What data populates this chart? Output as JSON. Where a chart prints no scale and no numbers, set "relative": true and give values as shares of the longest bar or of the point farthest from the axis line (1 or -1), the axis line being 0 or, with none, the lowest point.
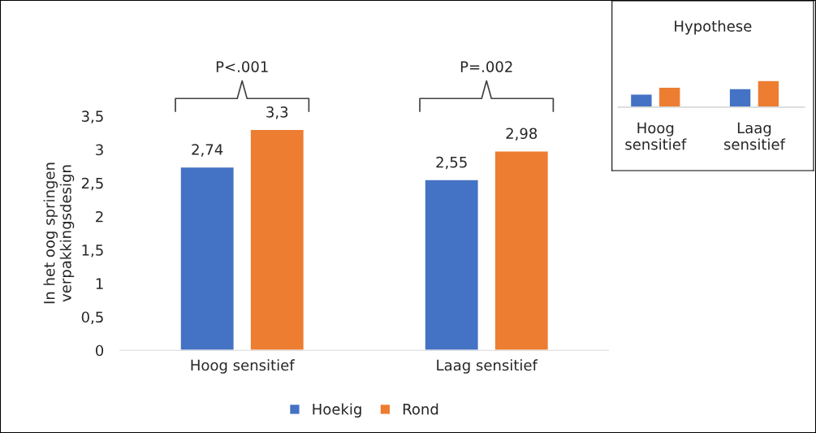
{
  "chart_data": [
    {
      "type": "bar",
      "ylabel": "In het oog springen\nverpakkingsdesign",
      "categories": [
        "Hoog sensitief",
        "Laag sensitief"
      ],
      "series": [
        {
          "name": "Hoekig",
          "color": "#4472c4",
          "values": [
            2.74,
            2.55
          ],
          "value_labels": [
            "2,74",
            "2,55"
          ]
        },
        {
          "name": "Rond",
          "color": "#ed7d31",
          "values": [
            3.3,
            2.98
          ],
          "value_labels": [
            "3,3",
            "2,98"
          ]
        }
      ],
      "ylim": [
        0,
        3.5
      ],
      "yticks": [
        0,
        {
          "value": 0.5,
          "label": "0,5"
        },
        1,
        {
          "value": 1.5,
          "label": "1,5"
        },
        2,
        {
          "value": 2.5,
          "label": "2,5"
        },
        3,
        {
          "value": 3.5,
          "label": "3,5"
        }
      ],
      "grid": false,
      "legend": "bottom",
      "annotations": [
        "P<.001",
        "P=.002"
      ]
    },
    {
      "type": "bar",
      "title": "Hypothese",
      "categories": [
        "Hoog\nsensitief",
        "Laag\nsensitief"
      ],
      "relative": true,
      "series": [
        {
          "color": "#4472c4",
          "values": [
            0.49,
            0.7
          ]
        },
        {
          "color": "#ed7d31",
          "values": [
            0.75,
            1
          ]
        }
      ]
    }
  ]
}
